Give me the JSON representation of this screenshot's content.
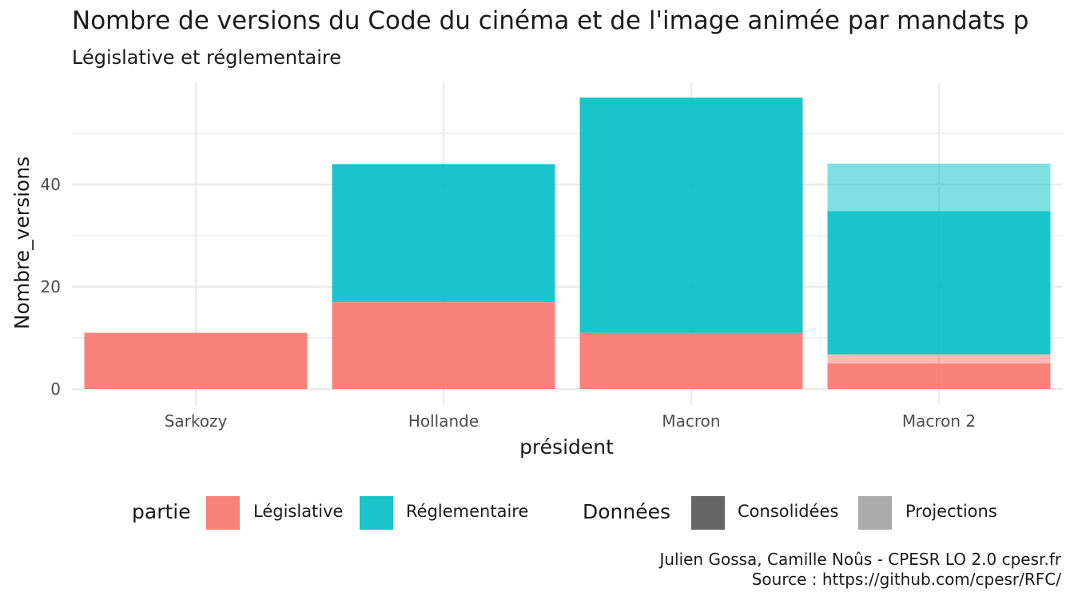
{
  "chart_data": {
    "type": "bar",
    "stacked": true,
    "title": "Nombre de versions du Code du cinéma et de l'image animée par mandats p",
    "subtitle": "Législative et réglementaire",
    "xlabel": "président",
    "ylabel": "Nombre_versions",
    "categories": [
      "Sarkozy",
      "Hollande",
      "Macron",
      "Macron 2"
    ],
    "ylim": [
      0,
      60
    ],
    "yticks": [
      0,
      20,
      40
    ],
    "grid": true,
    "segments": [
      {
        "category": "Sarkozy",
        "partie": "Législative",
        "donnees": "Consolidées",
        "value": 11
      },
      {
        "category": "Hollande",
        "partie": "Législative",
        "donnees": "Consolidées",
        "value": 17
      },
      {
        "category": "Hollande",
        "partie": "Réglementaire",
        "donnees": "Consolidées",
        "value": 27
      },
      {
        "category": "Macron",
        "partie": "Législative",
        "donnees": "Consolidées",
        "value": 11
      },
      {
        "category": "Macron",
        "partie": "Réglementaire",
        "donnees": "Consolidées",
        "value": 46
      },
      {
        "category": "Macron 2",
        "partie": "Législative",
        "donnees": "Consolidées",
        "value": 5
      },
      {
        "category": "Macron 2",
        "partie": "Législative",
        "donnees": "Projections",
        "value": 1.8
      },
      {
        "category": "Macron 2",
        "partie": "Réglementaire",
        "donnees": "Consolidées",
        "value": 28
      },
      {
        "category": "Macron 2",
        "partie": "Réglementaire",
        "donnees": "Projections",
        "value": 9.3
      }
    ],
    "colors": {
      "Législative": "#F8766D",
      "Réglementaire": "#00BFC4"
    },
    "opacity": {
      "Consolidées": 0.9,
      "Projections": 0.5
    },
    "legend": {
      "position": "bottom",
      "partie": {
        "title": "partie",
        "items": [
          "Législative",
          "Réglementaire"
        ]
      },
      "donnees": {
        "title": "Données",
        "items": [
          "Consolidées",
          "Projections"
        ],
        "colors": {
          "Consolidées": "#666666",
          "Projections": "#ababab"
        }
      }
    },
    "caption": [
      "Julien Gossa, Camille Noûs - CPESR LO 2.0 cpesr.fr",
      "Source : https://github.com/cpesr/RFC/"
    ]
  }
}
